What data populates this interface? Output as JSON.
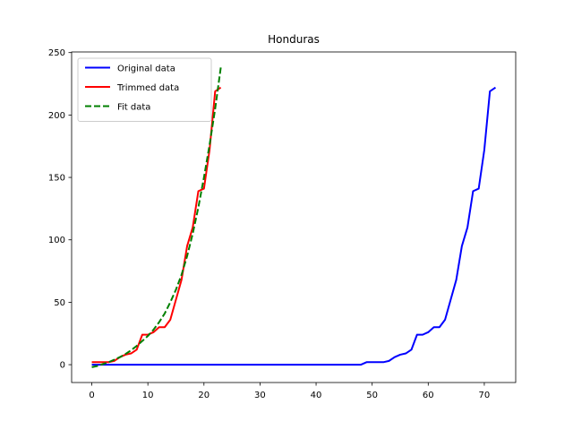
{
  "chart_data": {
    "type": "line",
    "title": "Honduras",
    "xlabel": "",
    "ylabel": "",
    "xlim": [
      -3.6,
      75.6
    ],
    "ylim": [
      -14.3,
      250.5
    ],
    "x_ticks": [
      0,
      10,
      20,
      30,
      40,
      50,
      60,
      70
    ],
    "y_ticks": [
      0,
      50,
      100,
      150,
      200,
      250
    ],
    "grid": false,
    "legend_position": "upper-left",
    "series": [
      {
        "name": "Original data",
        "color": "#0000ff",
        "style": "solid",
        "x": [
          0,
          1,
          2,
          3,
          4,
          5,
          6,
          7,
          8,
          9,
          10,
          11,
          12,
          13,
          14,
          15,
          16,
          17,
          18,
          19,
          20,
          21,
          22,
          23,
          24,
          25,
          26,
          27,
          28,
          29,
          30,
          31,
          32,
          33,
          34,
          35,
          36,
          37,
          38,
          39,
          40,
          41,
          42,
          43,
          44,
          45,
          46,
          47,
          48,
          49,
          50,
          51,
          52,
          53,
          54,
          55,
          56,
          57,
          58,
          59,
          60,
          61,
          62,
          63,
          64,
          65,
          66,
          67,
          68,
          69,
          70,
          71,
          72
        ],
        "y": [
          0,
          0,
          0,
          0,
          0,
          0,
          0,
          0,
          0,
          0,
          0,
          0,
          0,
          0,
          0,
          0,
          0,
          0,
          0,
          0,
          0,
          0,
          0,
          0,
          0,
          0,
          0,
          0,
          0,
          0,
          0,
          0,
          0,
          0,
          0,
          0,
          0,
          0,
          0,
          0,
          0,
          0,
          0,
          0,
          0,
          0,
          0,
          0,
          0,
          2,
          2,
          2,
          2,
          3,
          6,
          8,
          9,
          12,
          24,
          24,
          26,
          30,
          30,
          36,
          52,
          68,
          95,
          110,
          139,
          141,
          172,
          219,
          222
        ]
      },
      {
        "name": "Trimmed data",
        "color": "#ff0000",
        "style": "solid",
        "x": [
          0,
          1,
          2,
          3,
          4,
          5,
          6,
          7,
          8,
          9,
          10,
          11,
          12,
          13,
          14,
          15,
          16,
          17,
          18,
          19,
          20,
          21,
          22,
          23
        ],
        "y": [
          2,
          2,
          2,
          2,
          3,
          6,
          8,
          9,
          12,
          24,
          24,
          26,
          30,
          30,
          36,
          52,
          68,
          95,
          110,
          139,
          141,
          172,
          219,
          222
        ]
      },
      {
        "name": "Fit data",
        "color": "#008000",
        "style": "dashed",
        "x": [
          0,
          1,
          2,
          3,
          4,
          5,
          6,
          7,
          8,
          9,
          10,
          11,
          12,
          13,
          14,
          15,
          16,
          17,
          18,
          19,
          20,
          21,
          22,
          23
        ],
        "y": [
          -2,
          -1,
          0.5,
          2,
          4,
          6,
          8.5,
          11.5,
          15,
          19,
          23,
          28,
          34,
          41,
          50,
          60,
          72,
          87,
          105,
          126,
          150,
          176,
          205,
          238
        ]
      }
    ]
  }
}
